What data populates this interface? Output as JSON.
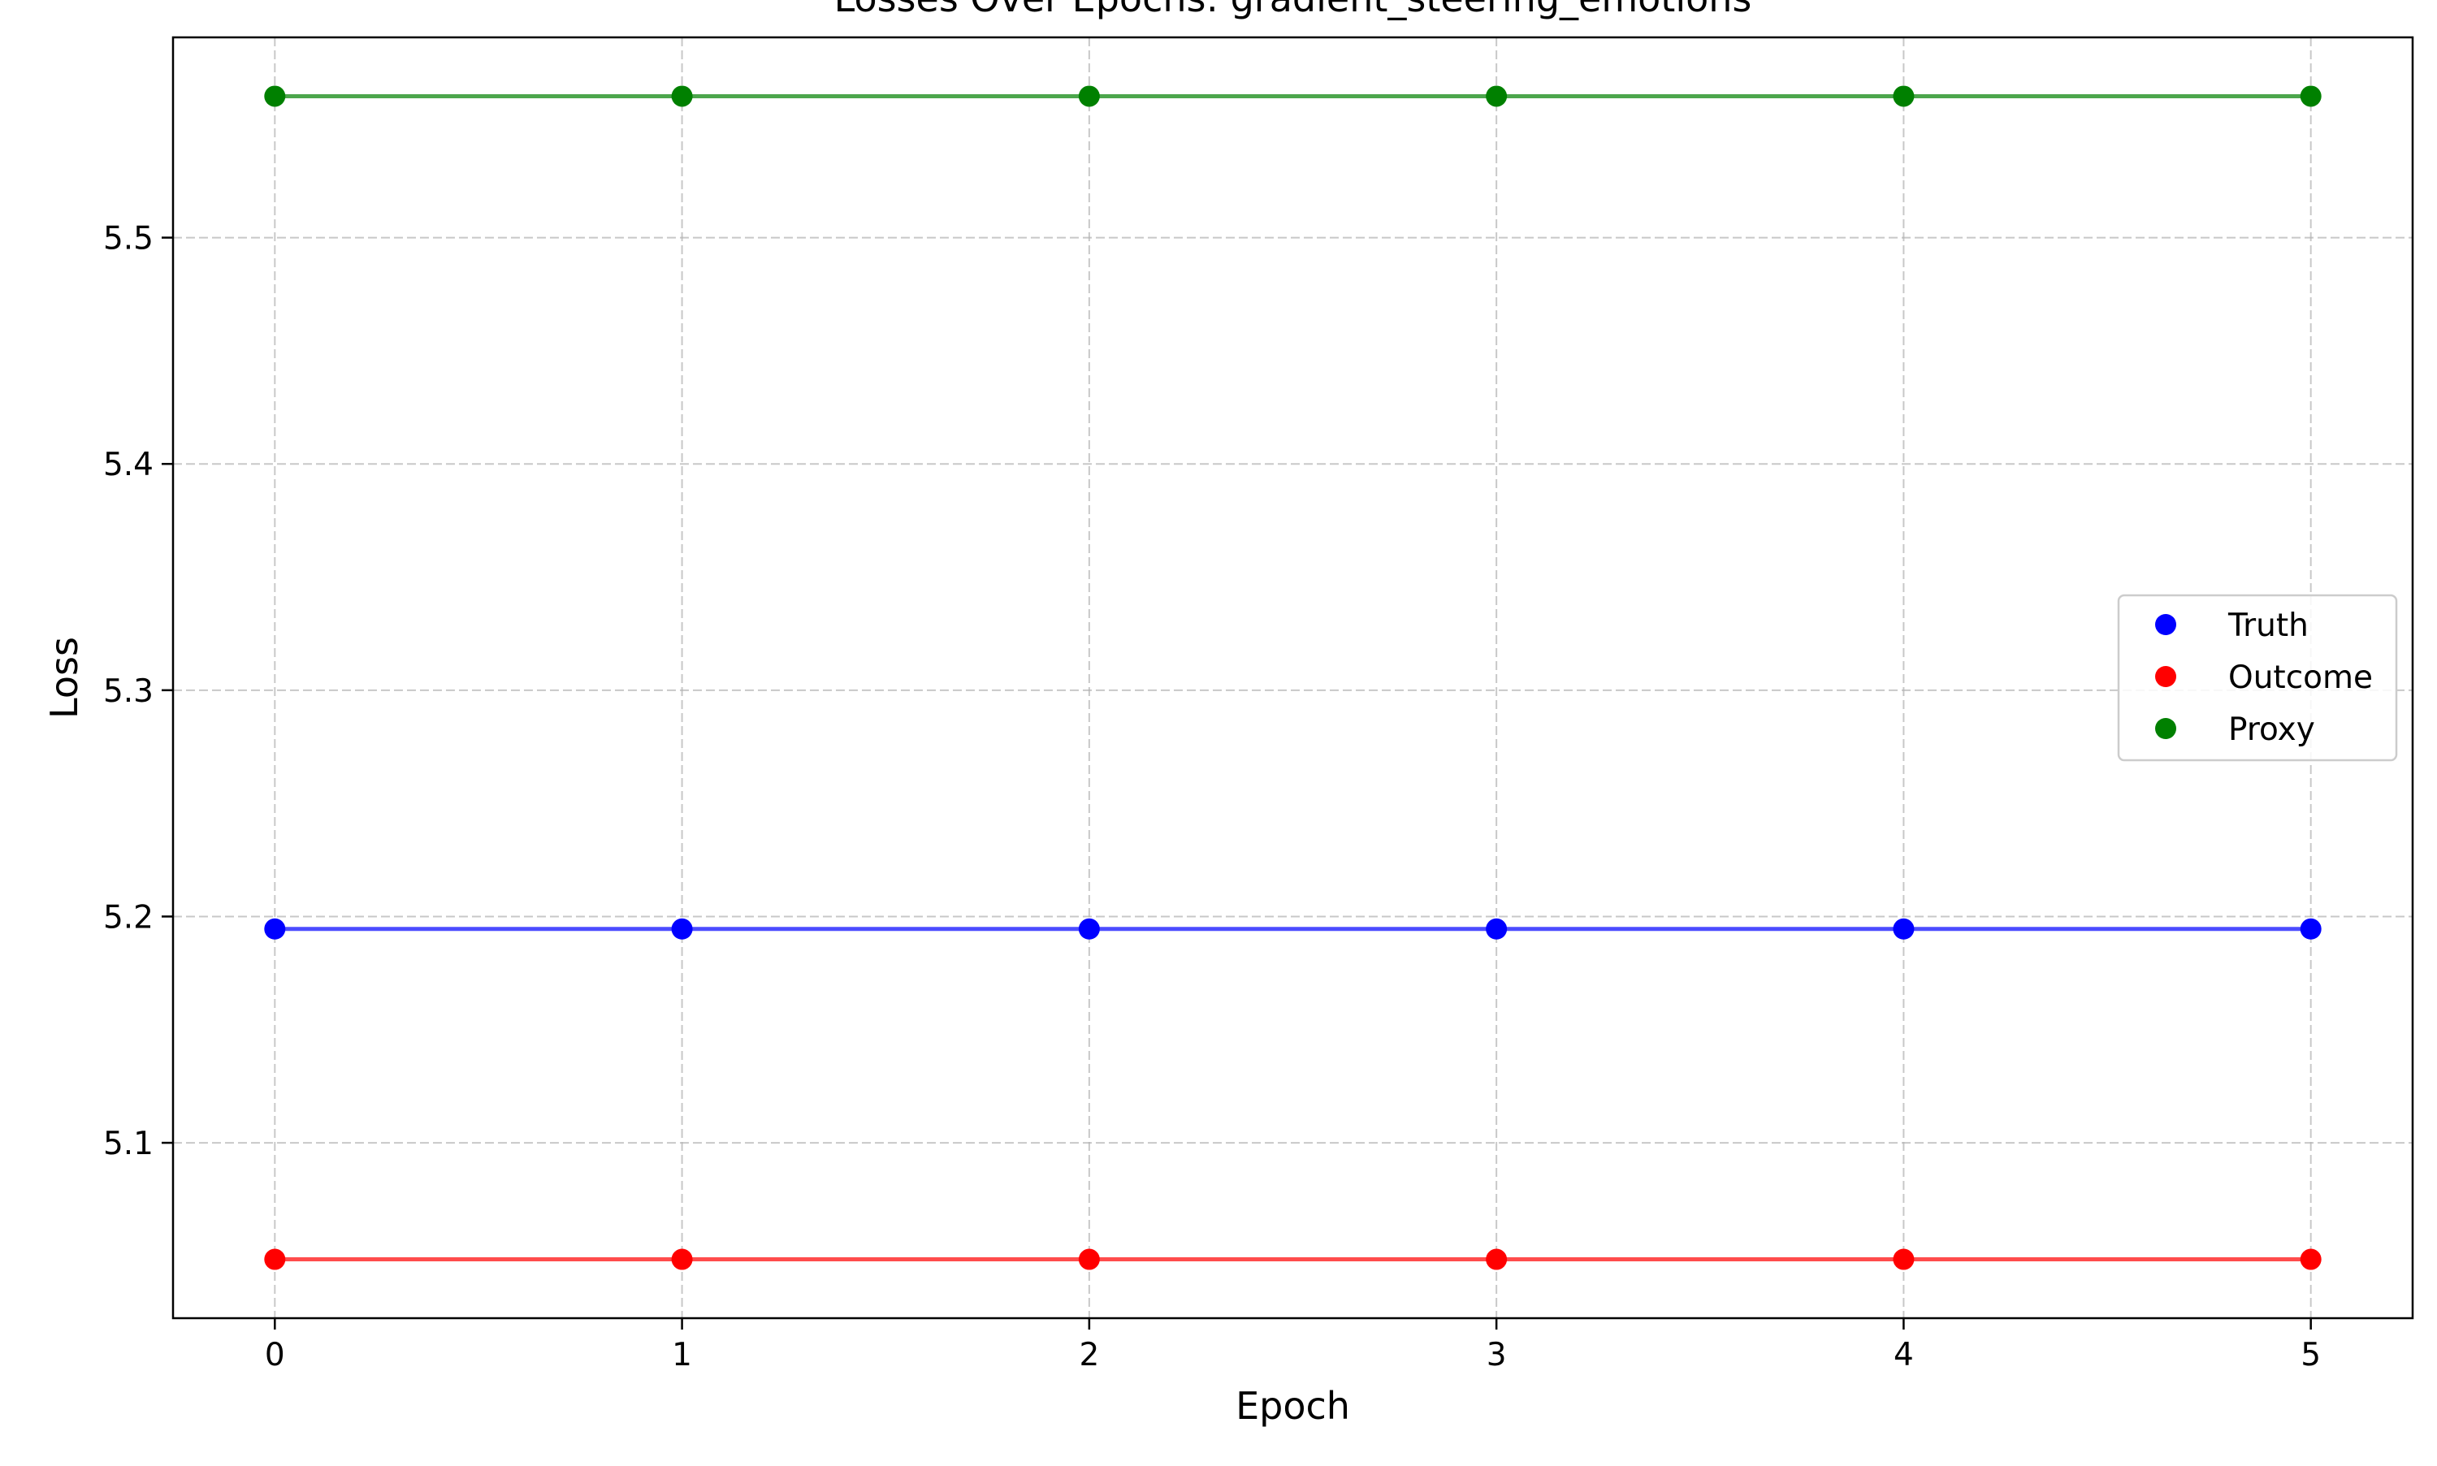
{
  "chart_data": {
    "type": "line",
    "title": "Losses Over Epochs: gradient_steering_emotions",
    "xlabel": "Epoch",
    "ylabel": "Loss",
    "x": [
      0,
      1,
      2,
      3,
      4,
      5
    ],
    "xlim": [
      -0.25,
      5.25
    ],
    "ylim": [
      5.0225,
      5.5885
    ],
    "xticks": [
      0,
      1,
      2,
      3,
      4,
      5
    ],
    "yticks": [
      5.1,
      5.2,
      5.3,
      5.4,
      5.5
    ],
    "grid": true,
    "legend_position": "center-right",
    "series": [
      {
        "name": "Truth",
        "color": "#0000ff",
        "values": [
          5.1945,
          5.1945,
          5.1945,
          5.1945,
          5.1945,
          5.1945
        ]
      },
      {
        "name": "Outcome",
        "color": "#ff0000",
        "values": [
          5.0485,
          5.0485,
          5.0485,
          5.0485,
          5.0485,
          5.0485
        ]
      },
      {
        "name": "Proxy",
        "color": "#008000",
        "values": [
          5.5625,
          5.5625,
          5.5625,
          5.5625,
          5.5625,
          5.5625
        ]
      }
    ]
  }
}
